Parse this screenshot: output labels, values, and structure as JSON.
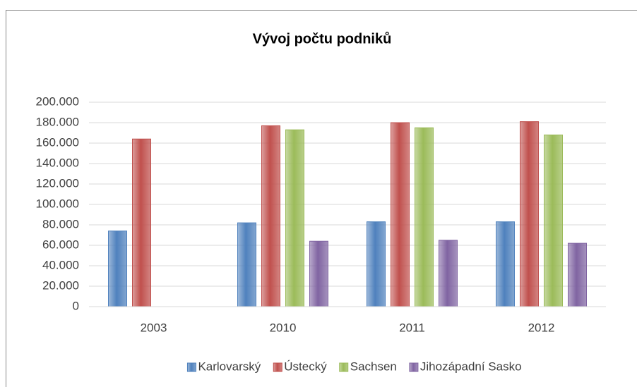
{
  "chart_data": {
    "type": "bar",
    "title": "Vývoj počtu podniků",
    "categories": [
      "2003",
      "2010",
      "2011",
      "2012"
    ],
    "series": [
      {
        "name": "Karlovarský",
        "color": "#4f81bd",
        "values": [
          74000,
          82000,
          83000,
          83000
        ]
      },
      {
        "name": "Ústecký",
        "color": "#c0504d",
        "values": [
          164000,
          177000,
          180000,
          181000
        ]
      },
      {
        "name": "Sachsen",
        "color": "#9bbb59",
        "values": [
          null,
          173000,
          175000,
          168000
        ]
      },
      {
        "name": "Jihozápadní Sasko",
        "color": "#8064a2",
        "values": [
          null,
          64000,
          65000,
          62000
        ]
      }
    ],
    "ylim": [
      0,
      200000
    ],
    "yticks": [
      0,
      {
        "value": 20000,
        "label": "20.000"
      },
      {
        "value": 40000,
        "label": "40.000"
      },
      {
        "value": 60000,
        "label": "60.000"
      },
      {
        "value": 80000,
        "label": "80.000"
      },
      {
        "value": 100000,
        "label": "100.000"
      },
      {
        "value": 120000,
        "label": "120.000"
      },
      {
        "value": 140000,
        "label": "140.000"
      },
      {
        "value": 160000,
        "label": "160.000"
      },
      {
        "value": 180000,
        "label": "180.000"
      },
      {
        "value": 200000,
        "label": "200.000"
      }
    ],
    "grid": true,
    "legend": "bottom"
  }
}
